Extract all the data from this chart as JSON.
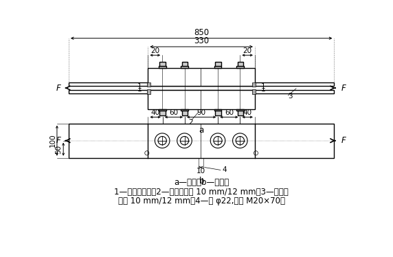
{
  "bg_color": "#ffffff",
  "line_color": "#000000",
  "font_size": 8.5,
  "small_font": 7.5,
  "caption_ab": "a—正视；b—俧视。",
  "caption_1": "1—位移计固定；2—盖板、板厕 10 mm/12 mm；3—芯板、",
  "caption_2": "板厕 10 mm/12 mm；4—孔 φ22,螺栓 M20×70。"
}
